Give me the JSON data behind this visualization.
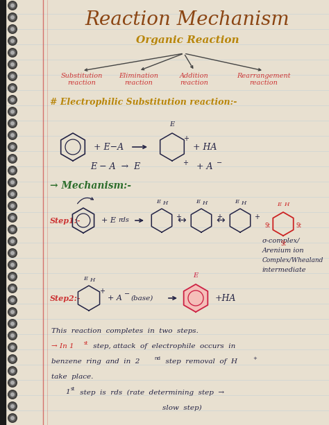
{
  "bg_color": "#e8e0d0",
  "page_color": "#f8f6f0",
  "ruled_line_color": "#b8ccd8",
  "red_margin_color": "#cc4444",
  "spiral_color": "#222222",
  "title": "Reaction Mechanism",
  "title_color": "#8b4513",
  "title_fontsize": 20,
  "subtitle": "Organic Reaction",
  "subtitle_color": "#b8860b",
  "subtitle_fontsize": 11,
  "branch_labels": [
    "Substitution\nreaction",
    "Elimination\nreaction",
    "Addition\nreaction",
    "Rearrangement\nreaction"
  ],
  "branch_color": "#cc3333",
  "tree_line_color": "#444444",
  "section_title": "# Electrophilic Substitution reaction:-",
  "section_title_color": "#b8860b",
  "mechanism_label": "→ Mechanism:-",
  "mechanism_color": "#2d6e2d",
  "step1_color": "#cc3333",
  "step2_color": "#cc3333",
  "ink_color": "#222244",
  "notes_color": "#222244",
  "arrow_color": "#444444"
}
